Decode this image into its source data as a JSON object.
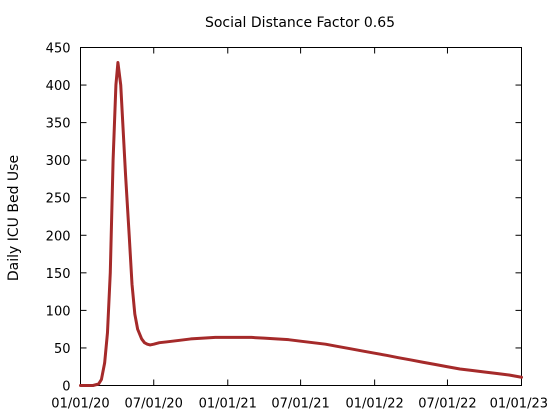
{
  "chart_data": {
    "type": "line",
    "title": "Social Distance Factor 0.65",
    "xlabel": "",
    "ylabel": "Daily ICU Bed Use",
    "x_ticks": [
      "2020-01-01",
      "2020-07-01",
      "2021-01-01",
      "2021-07-01",
      "2022-01-01",
      "2022-07-01",
      "2023-01-01"
    ],
    "x_tick_labels": [
      "01/01/20",
      "07/01/20",
      "01/01/21",
      "07/01/21",
      "01/01/22",
      "07/01/22",
      "01/01/23"
    ],
    "y_ticks": [
      0,
      50,
      100,
      150,
      200,
      250,
      300,
      350,
      400,
      450
    ],
    "xlim": [
      "2020-01-01",
      "2023-01-01"
    ],
    "ylim": [
      0,
      450
    ],
    "grid": false,
    "line_color": "#a52a2a",
    "series": [
      {
        "x": [
          "2020-01-01",
          "2020-01-15",
          "2020-02-01",
          "2020-02-15",
          "2020-02-22",
          "2020-03-01",
          "2020-03-08",
          "2020-03-15",
          "2020-03-22",
          "2020-03-29",
          "2020-04-03",
          "2020-04-10",
          "2020-04-15",
          "2020-04-22",
          "2020-05-01",
          "2020-05-08",
          "2020-05-15",
          "2020-05-22",
          "2020-06-01",
          "2020-06-08",
          "2020-06-15",
          "2020-06-22",
          "2020-07-01",
          "2020-07-08",
          "2020-07-15",
          "2020-08-01",
          "2020-09-01",
          "2020-10-01",
          "2020-11-01",
          "2020-12-01",
          "2021-01-01",
          "2021-02-01",
          "2021-03-01",
          "2021-04-01",
          "2021-05-01",
          "2021-06-01",
          "2021-07-01",
          "2021-08-01",
          "2021-09-01",
          "2021-10-01",
          "2021-11-01",
          "2021-12-01",
          "2022-01-01",
          "2022-02-01",
          "2022-03-01",
          "2022-04-01",
          "2022-05-01",
          "2022-06-01",
          "2022-07-01",
          "2022-08-01",
          "2022-09-01",
          "2022-10-01",
          "2022-11-01",
          "2022-12-01",
          "2023-01-01"
        ],
        "y": [
          0,
          0,
          0,
          2,
          8,
          30,
          70,
          150,
          300,
          400,
          430,
          400,
          350,
          280,
          200,
          135,
          95,
          75,
          62,
          57,
          55,
          54,
          55,
          56,
          57,
          58,
          60,
          62,
          63,
          64,
          64,
          64,
          64,
          63,
          62,
          61,
          59,
          57,
          55,
          52,
          49,
          46,
          43,
          40,
          37,
          34,
          31,
          28,
          25,
          22,
          20,
          18,
          16,
          14,
          11
        ]
      }
    ]
  }
}
